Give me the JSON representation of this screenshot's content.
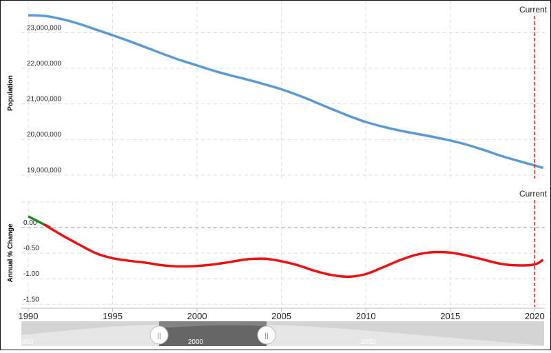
{
  "colors": {
    "population_line": "#5b9bd5",
    "change_positive": "#1f8c1f",
    "change_negative": "#ee1111",
    "current_marker": "#d62728",
    "grid": "#dddddd",
    "navigator_bg": "#d4d4d4",
    "navigator_selected": "#7a7a7a"
  },
  "labels": {
    "current_top": "Current",
    "current_bottom": "Current"
  },
  "navigator": {
    "ticks": [
      "950",
      "2000",
      "2050"
    ],
    "left_handle": "||",
    "right_handle": "||"
  },
  "chart_data": [
    {
      "type": "line",
      "ylabel": "Population",
      "x": [
        1990,
        1991,
        1992,
        1993,
        1994,
        1995,
        1996,
        1997,
        1998,
        1999,
        2000,
        2001,
        2002,
        2003,
        2004,
        2005,
        2006,
        2007,
        2008,
        2009,
        2010,
        2011,
        2012,
        2013,
        2014,
        2015,
        2016,
        2017,
        2018,
        2019,
        2020,
        2020.5
      ],
      "series": [
        {
          "values": [
            23490000,
            23470000,
            23380000,
            23250000,
            23090000,
            22930000,
            22760000,
            22580000,
            22400000,
            22230000,
            22080000,
            21930000,
            21800000,
            21680000,
            21550000,
            21410000,
            21240000,
            21050000,
            20850000,
            20660000,
            20490000,
            20360000,
            20250000,
            20160000,
            20070000,
            19970000,
            19850000,
            19700000,
            19540000,
            19400000,
            19270000,
            19200000
          ]
        }
      ],
      "yticks": [
        "19,000,000",
        "20,000,000",
        "21,000,000",
        "22,000,000",
        "23,000,000"
      ],
      "ylim": [
        18900000,
        23900000
      ],
      "xlim": [
        1990,
        2020.6
      ],
      "current_x": 2020,
      "grid": true
    },
    {
      "type": "line",
      "ylabel": "Annual % Change",
      "x": [
        1990,
        1991,
        1992,
        1993,
        1994,
        1995,
        1996,
        1997,
        1998,
        1999,
        2000,
        2001,
        2002,
        2003,
        2004,
        2005,
        2006,
        2007,
        2008,
        2009,
        2010,
        2011,
        2012,
        2013,
        2014,
        2015,
        2016,
        2017,
        2018,
        2019,
        2020,
        2020.5
      ],
      "series": [
        {
          "values": [
            0.22,
            0.05,
            -0.15,
            -0.33,
            -0.5,
            -0.6,
            -0.65,
            -0.69,
            -0.74,
            -0.76,
            -0.75,
            -0.72,
            -0.67,
            -0.62,
            -0.61,
            -0.66,
            -0.74,
            -0.85,
            -0.93,
            -0.96,
            -0.91,
            -0.78,
            -0.64,
            -0.53,
            -0.48,
            -0.49,
            -0.55,
            -0.63,
            -0.71,
            -0.74,
            -0.72,
            -0.63
          ]
        }
      ],
      "yticks": [
        "-1.50",
        "-1.00",
        "-0.50",
        "0.00"
      ],
      "ylim": [
        -1.55,
        0.5
      ],
      "xlim": [
        1990,
        2020.6
      ],
      "xticks": [
        "1990",
        "1995",
        "2000",
        "2005",
        "2010",
        "2015",
        "2020"
      ],
      "current_x": 2020,
      "grid": true
    }
  ]
}
